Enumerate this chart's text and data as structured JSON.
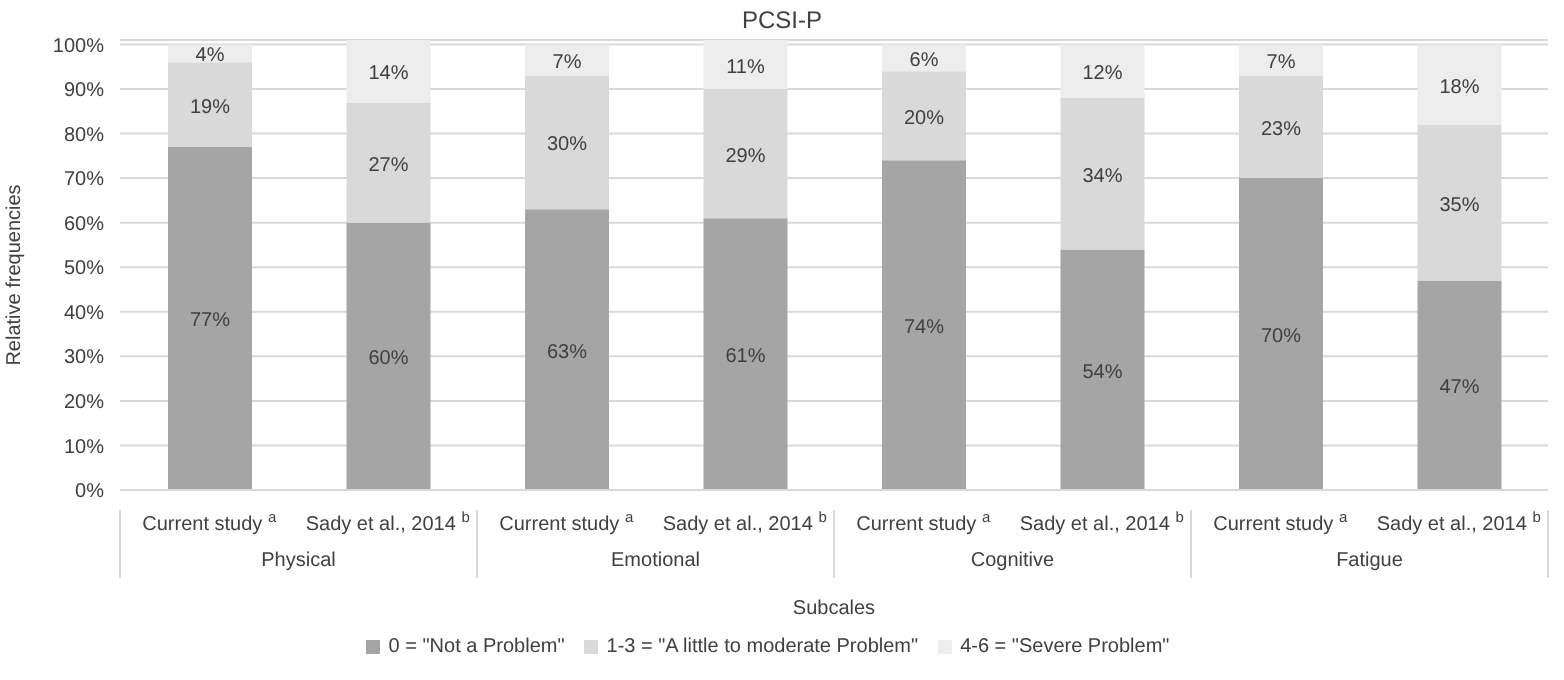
{
  "chart_data": {
    "type": "bar",
    "title": "PCSI-P",
    "xlabel": "Subcales",
    "ylabel": "Relative frequencies",
    "stacked": true,
    "categories": [
      "Current study $^{a}$",
      "Sady et al., 2014 $^{b}$",
      "Current study $^{a}$",
      "Sady et al., 2014 $^{b}$",
      "Current study $^{a}$",
      "Sady et al., 2014 $^{b}$",
      "Current study $^{a}$",
      "Sady et al., 2014 $^{b}$"
    ],
    "annotations": [
      "Physical",
      "Emotional",
      "Cognitive",
      "Fatigue"
    ],
    "series": [
      {
        "name": "0  = \"Not a Problem\"",
        "color": "#a5a5a5",
        "values": [
          77,
          60,
          63,
          61,
          74,
          54,
          70,
          47
        ],
        "value_labels": [
          "77%",
          "60%",
          "63%",
          "61%",
          "74%",
          "54%",
          "70%",
          "47%"
        ]
      },
      {
        "name": "1-3  = \"A little to moderate Problem\"",
        "color": "#d9d9d9",
        "values": [
          19,
          27,
          30,
          29,
          20,
          34,
          23,
          35
        ],
        "value_labels": [
          "19%",
          "27%",
          "30%",
          "29%",
          "20%",
          "34%",
          "23%",
          "35%"
        ]
      },
      {
        "name": "4-6 = \"Severe Problem\"",
        "color": "#ededed",
        "values": [
          4,
          14,
          7,
          11,
          6,
          12,
          7,
          18
        ],
        "value_labels": [
          "4%",
          "14%",
          "7%",
          "11%",
          "6%",
          "12%",
          "7%",
          "18%"
        ]
      }
    ],
    "ylim": [
      0,
      101
    ],
    "yticks": [
      {
        "value": 0,
        "label": "0%"
      },
      {
        "value": 10,
        "label": "10%"
      },
      {
        "value": 20,
        "label": "20%"
      },
      {
        "value": 30,
        "label": "30%"
      },
      {
        "value": 40,
        "label": "40%"
      },
      {
        "value": 50,
        "label": "50%"
      },
      {
        "value": 60,
        "label": "60%"
      },
      {
        "value": 70,
        "label": "70%"
      },
      {
        "value": 80,
        "label": "80%"
      },
      {
        "value": 90,
        "label": "90%"
      },
      {
        "value": 100,
        "label": "100%"
      }
    ],
    "grid": "y",
    "legend": "bottom"
  }
}
